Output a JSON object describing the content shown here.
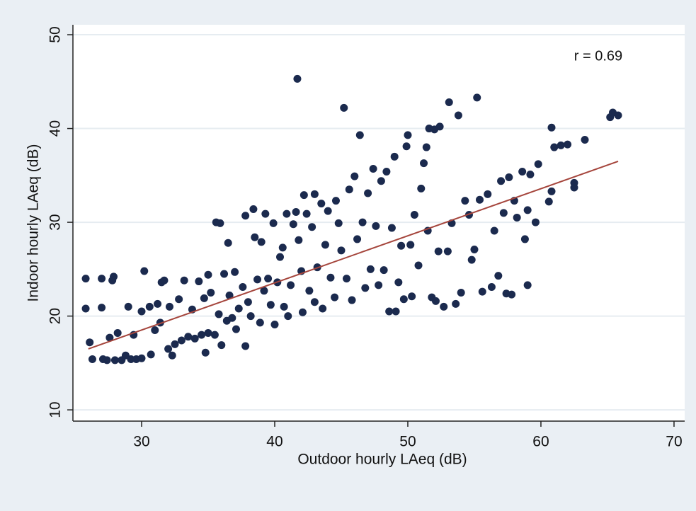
{
  "chart_data": {
    "type": "scatter",
    "x_label": "Outdoor hourly LAeq (dB)",
    "y_label": "Indoor hourly LAeq (dB)",
    "annotation": "r = 0.69",
    "color": "#1b2a4e",
    "x": [
      25.8,
      25.8,
      26.1,
      26.3,
      27,
      27,
      27.1,
      27.4,
      27.6,
      27.8,
      27.9,
      28,
      28.2,
      28.5,
      28.8,
      29,
      29.2,
      29.4,
      29.6,
      30,
      30,
      30.2,
      30.6,
      30.7,
      31,
      31.2,
      31.4,
      31.5,
      31.7,
      32,
      32.1,
      32.3,
      32.5,
      32.8,
      33,
      33.2,
      33.5,
      33.8,
      34,
      34.3,
      34.5,
      34.7,
      34.8,
      35,
      35,
      35.2,
      35.5,
      35.8,
      35.6,
      35.9,
      36,
      36.2,
      36.4,
      36.5,
      36.6,
      36.8,
      37,
      37.1,
      37.3,
      37.6,
      37.8,
      37.8,
      38,
      38.2,
      38.4,
      38.5,
      38.7,
      38.9,
      39,
      39.2,
      39.3,
      39.5,
      39.7,
      39.9,
      40,
      40.2,
      40.4,
      40.6,
      40.7,
      40.9,
      41,
      41.2,
      41.4,
      41.6,
      41.7,
      41.8,
      42,
      42.1,
      42.2,
      42.4,
      42.6,
      42.8,
      43,
      43,
      43.2,
      43.5,
      43.6,
      43.8,
      44,
      44.2,
      44.5,
      44.6,
      44.8,
      45,
      45.2,
      45.4,
      45.6,
      45.8,
      46,
      46.2,
      46.4,
      46.6,
      46.8,
      47,
      47.2,
      47.4,
      47.6,
      47.8,
      48,
      48.2,
      48.4,
      48.6,
      48.8,
      49,
      49.1,
      49.3,
      49.5,
      49.7,
      49.9,
      50,
      50.2,
      50.3,
      50.5,
      50.8,
      51,
      51.2,
      51.4,
      51.5,
      51.6,
      51.8,
      52,
      52.1,
      52.3,
      52.4,
      52.7,
      53,
      53.1,
      53.3,
      53.6,
      53.8,
      54,
      54.3,
      54.6,
      54.8,
      55,
      55.2,
      55.4,
      55.6,
      56,
      56.3,
      56.5,
      56.8,
      57,
      57.2,
      57.4,
      57.6,
      57.8,
      58,
      58.2,
      58.6,
      58.8,
      59,
      59,
      59.2,
      59.6,
      59.8,
      60.6,
      60.8,
      60.8,
      61,
      61.5,
      62,
      62.5,
      62.5,
      63.3,
      65.2,
      65.4,
      65.8
    ],
    "values": [
      24,
      20.8,
      17.2,
      15.4,
      24,
      20.9,
      15.4,
      15.3,
      17.7,
      23.8,
      24.2,
      15.3,
      18.2,
      15.3,
      15.8,
      21,
      15.4,
      18,
      15.4,
      15.5,
      20.5,
      24.8,
      21,
      15.9,
      18.5,
      21.3,
      19.3,
      23.6,
      23.8,
      16.5,
      21,
      15.8,
      17,
      21.8,
      17.4,
      23.8,
      17.8,
      20.7,
      17.6,
      23.7,
      18,
      21.9,
      16.1,
      18.2,
      24.4,
      22.5,
      18,
      20.2,
      30,
      29.9,
      16.9,
      24.5,
      19.5,
      27.8,
      22.2,
      19.8,
      24.7,
      18.6,
      20.8,
      23.1,
      16.8,
      30.7,
      21.5,
      20,
      31.4,
      28.4,
      23.9,
      19.3,
      27.9,
      22.7,
      30.9,
      24,
      21.2,
      29.9,
      19.1,
      23.6,
      26.3,
      27.3,
      21,
      30.9,
      20,
      23.3,
      29.8,
      31.1,
      45.3,
      28.1,
      24.8,
      20.4,
      32.9,
      30.9,
      22.7,
      29.5,
      33,
      21.5,
      25.2,
      32,
      20.8,
      27.6,
      31.2,
      24.1,
      22,
      32.3,
      29.9,
      27,
      42.2,
      24,
      33.5,
      21.7,
      34.9,
      28.2,
      39.3,
      30,
      23,
      33.1,
      25,
      35.7,
      29.6,
      23.3,
      34.4,
      24.9,
      35.4,
      20.5,
      29.4,
      37,
      20.5,
      23.6,
      27.5,
      21.8,
      38.1,
      39.3,
      27.6,
      22.1,
      30.8,
      25.4,
      33.6,
      36.3,
      38,
      29.1,
      40,
      22,
      39.9,
      21.6,
      26.9,
      40.2,
      21,
      26.9,
      42.8,
      29.9,
      21.3,
      41.4,
      22.5,
      32.3,
      30.8,
      26,
      27.1,
      43.3,
      32.4,
      22.6,
      33,
      23.1,
      29.1,
      24.3,
      34.4,
      31,
      22.4,
      34.8,
      22.3,
      32.3,
      30.5,
      35.4,
      28.2,
      31.3,
      23.3,
      35.1,
      30,
      36.2,
      32.2,
      33.3,
      40.1,
      38,
      38.2,
      38.3,
      34.2,
      33.7,
      38.8,
      41.2,
      41.7,
      41.4
    ],
    "fit_line": {
      "color": "#a5453c",
      "x": [
        26,
        65.8
      ],
      "values": [
        16.5,
        36.5
      ]
    },
    "xlim": [
      24.84,
      70.8
    ],
    "ylim": [
      8.8,
      51.06
    ],
    "xticks": [
      30,
      40,
      50,
      60,
      70
    ],
    "yticks": [
      10,
      20,
      30,
      40,
      50
    ],
    "grid": true
  }
}
